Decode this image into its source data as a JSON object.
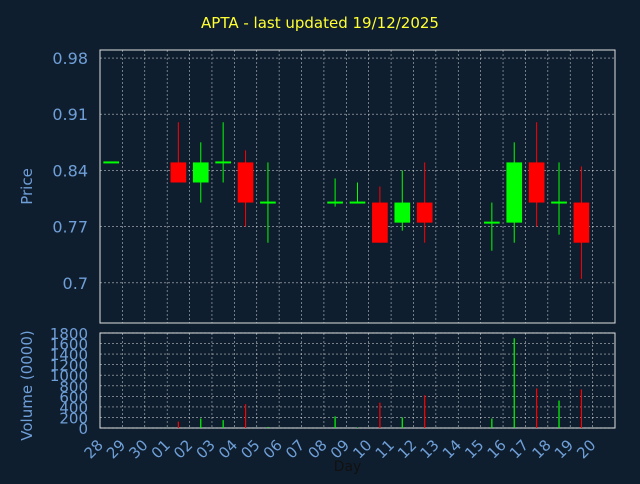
{
  "chart_data": {
    "type": "candlestick",
    "title": "APTA - last updated 19/12/2025",
    "xlabel": "Day",
    "ylabel_price": "Price",
    "ylabel_volume": "Volume (0000)",
    "x_ticks": [
      "28",
      "29",
      "30",
      "01",
      "02",
      "03",
      "04",
      "05",
      "06",
      "07",
      "08",
      "09",
      "10",
      "11",
      "12",
      "13",
      "14",
      "15",
      "16",
      "17",
      "18",
      "19",
      "20"
    ],
    "price_ylim": [
      0.65,
      0.99
    ],
    "price_yticks": [
      "0.98",
      "0.91",
      "0.84",
      "0.77",
      "0.7"
    ],
    "volume_ylim": [
      0,
      1800
    ],
    "volume_yticks": [
      "1800",
      "1600",
      "1400",
      "1200",
      "1000",
      "800",
      "600",
      "400",
      "200",
      "0"
    ],
    "grid": true,
    "colors": {
      "up": "#00ff00",
      "down": "#ff0000",
      "flat": "#00ff00",
      "axis": "#6f9fd8",
      "title": "#ffff33",
      "grid": "#ffffff"
    },
    "candles": [
      {
        "day": "28",
        "open": 0.85,
        "close": 0.85,
        "high": 0.85,
        "low": 0.85,
        "volume": 0
      },
      {
        "day": "01",
        "open": 0.85,
        "close": 0.825,
        "high": 0.9,
        "low": 0.825,
        "volume": 120
      },
      {
        "day": "02",
        "open": 0.825,
        "close": 0.85,
        "high": 0.875,
        "low": 0.8,
        "volume": 180
      },
      {
        "day": "03",
        "open": 0.85,
        "close": 0.85,
        "high": 0.9,
        "low": 0.825,
        "volume": 150
      },
      {
        "day": "04",
        "open": 0.85,
        "close": 0.8,
        "high": 0.865,
        "low": 0.77,
        "volume": 450
      },
      {
        "day": "05",
        "open": 0.8,
        "close": 0.8,
        "high": 0.85,
        "low": 0.75,
        "volume": 20
      },
      {
        "day": "08",
        "open": 0.8,
        "close": 0.8,
        "high": 0.83,
        "low": 0.795,
        "volume": 220
      },
      {
        "day": "09",
        "open": 0.8,
        "close": 0.8,
        "high": 0.825,
        "low": 0.8,
        "volume": 10
      },
      {
        "day": "10",
        "open": 0.8,
        "close": 0.75,
        "high": 0.82,
        "low": 0.75,
        "volume": 480
      },
      {
        "day": "11",
        "open": 0.775,
        "close": 0.8,
        "high": 0.84,
        "low": 0.765,
        "volume": 200
      },
      {
        "day": "12",
        "open": 0.8,
        "close": 0.775,
        "high": 0.85,
        "low": 0.75,
        "volume": 620
      },
      {
        "day": "15",
        "open": 0.775,
        "close": 0.775,
        "high": 0.8,
        "low": 0.74,
        "volume": 180
      },
      {
        "day": "16",
        "open": 0.775,
        "close": 0.85,
        "high": 0.875,
        "low": 0.75,
        "volume": 1700
      },
      {
        "day": "17",
        "open": 0.85,
        "close": 0.8,
        "high": 0.9,
        "low": 0.77,
        "volume": 750
      },
      {
        "day": "18",
        "open": 0.8,
        "close": 0.8,
        "high": 0.85,
        "low": 0.76,
        "volume": 520
      },
      {
        "day": "19",
        "open": 0.8,
        "close": 0.75,
        "high": 0.845,
        "low": 0.705,
        "volume": 730
      }
    ]
  }
}
